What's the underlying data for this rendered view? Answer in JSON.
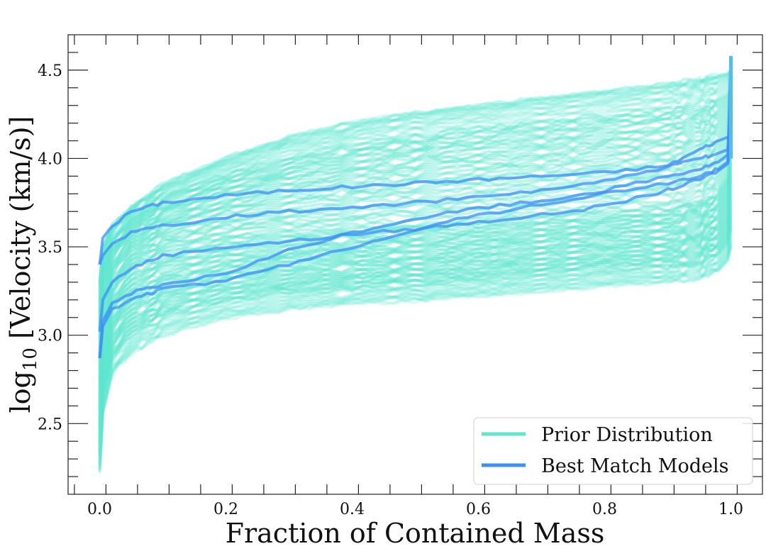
{
  "chart_data": {
    "type": "line",
    "title": "",
    "xlabel": "Fraction of Contained Mass",
    "ylabel_base": "log",
    "ylabel_sub": "10",
    "ylabel_rest": " [Velocity (km/s)]",
    "xlim": [
      -0.05,
      1.05
    ],
    "ylim": [
      2.1,
      4.7
    ],
    "xticks": [
      "0.0",
      "0.2",
      "0.4",
      "0.6",
      "0.8",
      "1.0"
    ],
    "yticks": [
      "2.5",
      "3.0",
      "3.5",
      "4.0",
      "4.5"
    ],
    "grid": false,
    "legend_location": "lower-right",
    "colors": {
      "prior": "#5ee6d0",
      "best": "#3d8ef5",
      "best_tip": "#56bce8"
    },
    "x": [
      0,
      0.005,
      0.02,
      0.05,
      0.1,
      0.2,
      0.3,
      0.4,
      0.5,
      0.6,
      0.7,
      0.8,
      0.9,
      0.95,
      0.98,
      0.995,
      1.0
    ],
    "series": [
      {
        "name": "Prior Distribution",
        "role": "prior_band_low",
        "values": [
          2.22,
          2.55,
          2.78,
          2.9,
          3.0,
          3.1,
          3.15,
          3.18,
          3.2,
          3.22,
          3.25,
          3.28,
          3.3,
          3.32,
          3.36,
          3.42,
          3.5
        ]
      },
      {
        "name": "Prior Distribution",
        "role": "prior_band_mid",
        "values": [
          2.7,
          3.05,
          3.25,
          3.4,
          3.48,
          3.55,
          3.58,
          3.6,
          3.62,
          3.65,
          3.67,
          3.7,
          3.72,
          3.76,
          3.82,
          3.9,
          4.0
        ]
      },
      {
        "name": "Prior Distribution",
        "role": "prior_band_high",
        "values": [
          3.3,
          3.5,
          3.62,
          3.72,
          3.85,
          4.0,
          4.12,
          4.2,
          4.26,
          4.3,
          4.34,
          4.38,
          4.42,
          4.45,
          4.47,
          4.48,
          4.5
        ]
      },
      {
        "name": "Best Match Models",
        "values": [
          3.4,
          3.55,
          3.62,
          3.7,
          3.75,
          3.79,
          3.82,
          3.84,
          3.86,
          3.88,
          3.9,
          3.92,
          3.96,
          4.05,
          4.1,
          4.12,
          4.13
        ]
      },
      {
        "name": "Best Match Models",
        "values": [
          3.4,
          3.45,
          3.52,
          3.58,
          3.62,
          3.67,
          3.7,
          3.72,
          3.75,
          3.78,
          3.82,
          3.87,
          3.95,
          4.0,
          4.03,
          4.05,
          4.3
        ]
      },
      {
        "name": "Best Match Models",
        "values": [
          3.02,
          3.2,
          3.3,
          3.38,
          3.45,
          3.5,
          3.53,
          3.57,
          3.6,
          3.64,
          3.68,
          3.73,
          3.82,
          3.88,
          3.93,
          3.97,
          4.05
        ]
      },
      {
        "name": "Best Match Models",
        "values": [
          2.87,
          3.05,
          3.15,
          3.2,
          3.26,
          3.31,
          3.4,
          3.5,
          3.6,
          3.68,
          3.74,
          3.8,
          3.86,
          3.9,
          3.94,
          3.98,
          4.58
        ]
      },
      {
        "name": "Best Match Models",
        "values": [
          2.87,
          3.08,
          3.18,
          3.24,
          3.28,
          3.35,
          3.48,
          3.58,
          3.66,
          3.72,
          3.76,
          3.82,
          3.9,
          3.94,
          3.98,
          4.02,
          4.2
        ]
      }
    ],
    "legend": [
      {
        "label": "Prior Distribution",
        "series": "prior"
      },
      {
        "label": "Best Match Models",
        "series": "best"
      }
    ]
  }
}
